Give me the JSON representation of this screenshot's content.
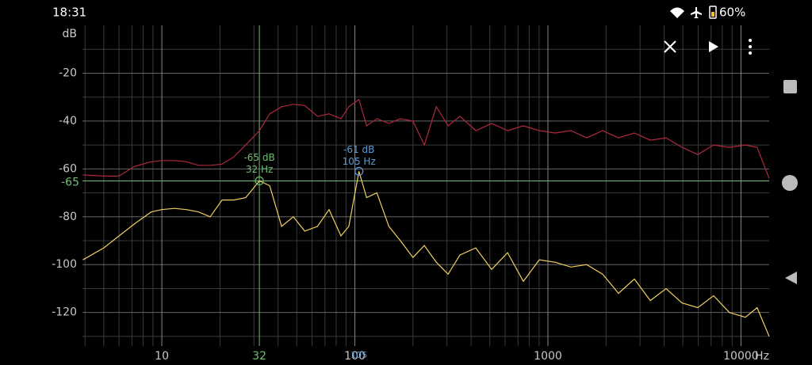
{
  "status_bar": {
    "time": "18:31",
    "battery": "60%"
  },
  "chart_data": {
    "type": "line",
    "x_label": "Hz",
    "y_label": "dB",
    "log_x": true,
    "grid": true,
    "xlim": [
      3.88,
      14000
    ],
    "ylim": [
      -134,
      0
    ],
    "xticks": [
      10,
      100,
      1000,
      10000
    ],
    "yticks": [
      -20,
      -40,
      -60,
      -80,
      -100,
      -120
    ],
    "y_minor_ticks": [
      -10,
      -30,
      -50,
      -70,
      -90,
      -110,
      -130
    ],
    "x": [
      3.9,
      5.0,
      6.0,
      7.2,
      8.8,
      10,
      11.6,
      13.4,
      15.5,
      17.8,
      20.5,
      23.6,
      27.2,
      32,
      36.2,
      41.7,
      48,
      55,
      64,
      73.5,
      84.7,
      93,
      105,
      115,
      130,
      150,
      172,
      200,
      229,
      264,
      304,
      350,
      423,
      511,
      618,
      746,
      902,
      1089,
      1316,
      1589,
      1920,
      2320,
      2805,
      3390,
      4095,
      4945,
      5975,
      7215,
      8710,
      10540,
      12130,
      14000
    ],
    "series": [
      {
        "color": "#b0283c",
        "values": [
          -62.5,
          -63,
          -63,
          -59,
          -57,
          -56.5,
          -56.5,
          -57,
          -58.5,
          -58.5,
          -58,
          -55,
          -50,
          -44,
          -37,
          -34,
          -33,
          -33.5,
          -38,
          -37,
          -39,
          -34,
          -31,
          -42,
          -39,
          -41,
          -39,
          -40,
          -50,
          -34,
          -42,
          -38,
          -44,
          -41,
          -44,
          -42,
          -44,
          -45,
          -44,
          -47,
          -44,
          -47,
          -45,
          -48,
          -47,
          -51,
          -54,
          -50,
          -51,
          -50,
          -51,
          -64
        ]
      },
      {
        "color": "#f0d060",
        "values": [
          -98,
          -93,
          -88,
          -83,
          -78,
          -77,
          -76.5,
          -77,
          -78,
          -80,
          -73,
          -73,
          -72,
          -65,
          -67,
          -84,
          -80,
          -86,
          -84,
          -77,
          -88,
          -84,
          -61,
          -72,
          -70,
          -84,
          -90,
          -97,
          -92,
          -99,
          -104,
          -96,
          -93,
          -102,
          -95,
          -107,
          -98,
          -99,
          -101,
          -100,
          -104,
          -112,
          -106,
          -115,
          -110,
          -116,
          -118,
          -113,
          -120,
          -122,
          -118,
          -130
        ]
      }
    ],
    "cursor": {
      "color": "#6fbf73",
      "x": 32,
      "y": -65,
      "x_label": "32 Hz",
      "y_label": "-65 dB",
      "axis_x_label": "32",
      "axis_y_label": "-65"
    },
    "peak": {
      "color": "#5b9bd5",
      "x": 105,
      "y": -61,
      "x_label": "105 Hz",
      "y_label": "-61 dB",
      "axis_x_label": "105"
    }
  }
}
